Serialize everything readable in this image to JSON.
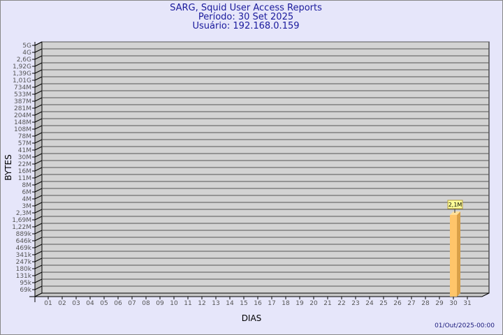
{
  "chart_data": {
    "type": "bar",
    "title": [
      "SARG, Squid User Access Reports",
      "Período: 30 Set 2025",
      "Usuário: 192.168.0.159"
    ],
    "xlabel": "DIAS",
    "ylabel": "BYTES",
    "y_scale": "log",
    "y_tick_labels": [
      "5G",
      "4G",
      "2,6G",
      "1,92G",
      "1,39G",
      "1,01G",
      "734M",
      "533M",
      "387M",
      "281M",
      "204M",
      "148M",
      "108M",
      "78M",
      "57M",
      "41M",
      "30M",
      "22M",
      "16M",
      "11M",
      "8M",
      "6M",
      "4M",
      "3M",
      "2,3M",
      "1,69M",
      "1,22M",
      "889k",
      "646k",
      "469k",
      "341k",
      "247k",
      "180k",
      "131k",
      "95k",
      "69k"
    ],
    "categories": [
      "01",
      "02",
      "03",
      "04",
      "05",
      "06",
      "07",
      "08",
      "09",
      "10",
      "11",
      "12",
      "13",
      "14",
      "15",
      "16",
      "17",
      "18",
      "19",
      "20",
      "21",
      "22",
      "23",
      "24",
      "25",
      "26",
      "27",
      "28",
      "29",
      "30",
      "31"
    ],
    "bars": [
      {
        "category": "30",
        "value": 2100000,
        "label": "2,1M"
      }
    ],
    "grid": true,
    "colors": {
      "bar": "#ffc56a",
      "bar_side": "#d9a048",
      "wall": "#d3d3d3",
      "label_bg": "#ffff99"
    }
  },
  "footer_timestamp": "01/Out/2025-00:00"
}
